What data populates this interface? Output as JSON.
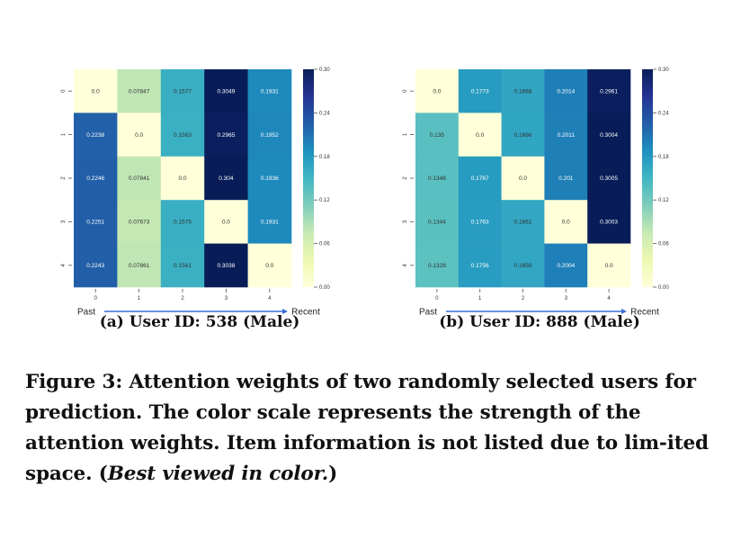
{
  "chart_data": [
    {
      "type": "heatmap",
      "caption": "(a) User ID: 538 (Male)",
      "x_tick_labels": [
        "0",
        "1",
        "2",
        "3",
        "4"
      ],
      "y_tick_labels": [
        "0",
        "1",
        "2",
        "3",
        "4"
      ],
      "arrow_start_label": "Past",
      "arrow_end_label": "Recent",
      "colorbar": {
        "range": [
          0.0,
          0.3
        ],
        "ticks": [
          "0.00",
          "0.06",
          "0.12",
          "0.18",
          "0.24",
          "0.30"
        ],
        "colormap": "YlGnBu"
      },
      "values": [
        [
          0.0,
          0.07847,
          0.1577,
          0.3049,
          0.1931
        ],
        [
          0.2238,
          0.0,
          0.1563,
          0.2965,
          0.1952
        ],
        [
          0.2246,
          0.07841,
          0.0,
          0.304,
          0.1936
        ],
        [
          0.2251,
          0.07673,
          0.1575,
          0.0,
          0.1931
        ],
        [
          0.2243,
          0.07861,
          0.1561,
          0.3038,
          0.0
        ]
      ],
      "labels": [
        [
          "0.0",
          "0.07847",
          "0.1577",
          "0.3049",
          "0.1931"
        ],
        [
          "0.2238",
          "0.0",
          "0.1563",
          "0.2965",
          "0.1952"
        ],
        [
          "0.2246",
          "0.07841",
          "0.0",
          "0.304",
          "0.1936"
        ],
        [
          "0.2251",
          "0.07673",
          "0.1575",
          "0.0",
          "0.1931"
        ],
        [
          "0.2243",
          "0.07861",
          "0.1561",
          "0.3038",
          "0.0"
        ]
      ]
    },
    {
      "type": "heatmap",
      "caption": "(b) User ID: 888 (Male)",
      "x_tick_labels": [
        "0",
        "1",
        "2",
        "3",
        "4"
      ],
      "y_tick_labels": [
        "0",
        "1",
        "2",
        "3",
        "4"
      ],
      "arrow_start_label": "Past",
      "arrow_end_label": "Recent",
      "colorbar": {
        "range": [
          0.0,
          0.3
        ],
        "ticks": [
          "0.00",
          "0.06",
          "0.12",
          "0.18",
          "0.24",
          "0.30"
        ],
        "colormap": "YlGnBu"
      },
      "values": [
        [
          0.0,
          0.1773,
          0.1668,
          0.2014,
          0.2961
        ],
        [
          0.135,
          0.0,
          0.1666,
          0.2011,
          0.3004
        ],
        [
          0.1348,
          0.1767,
          0.0,
          0.201,
          0.3005
        ],
        [
          0.1344,
          0.1763,
          0.1661,
          0.0,
          0.3003
        ],
        [
          0.1328,
          0.1756,
          0.1659,
          0.2004,
          0.0
        ]
      ],
      "labels": [
        [
          "0.0",
          "0.1773",
          "0.1668",
          "0.2014",
          "0.2961"
        ],
        [
          "0.135",
          "0.0",
          "0.1666",
          "0.2011",
          "0.3004"
        ],
        [
          "0.1348",
          "0.1767",
          "0.0",
          "0.201",
          "0.3005"
        ],
        [
          "0.1344",
          "0.1763",
          "0.1661",
          "0.0",
          "0.3003"
        ],
        [
          "0.1328",
          "0.1756",
          "0.1659",
          "0.2004",
          "0.0"
        ]
      ]
    }
  ],
  "figure_caption": {
    "text": "Figure 3: Attention weights of two randomly selected users for prediction. The color scale represents the strength of the attention weights. Item information is not listed due to lim-ited space. (",
    "emphasis": "Best viewed in color.",
    "close": ")"
  }
}
